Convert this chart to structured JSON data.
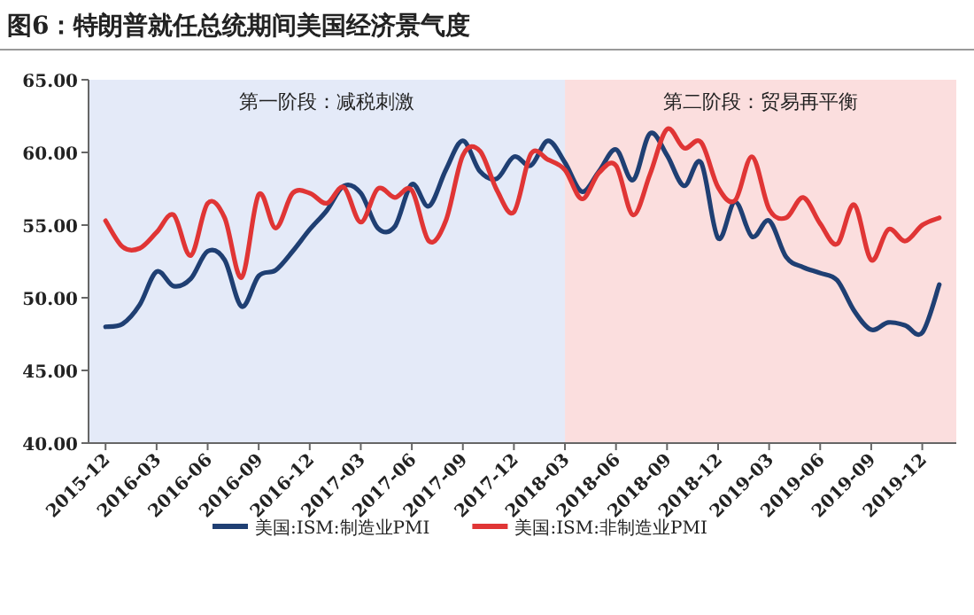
{
  "chart_data": {
    "type": "line",
    "title": "图6：特朗普就任总统期间美国经济景气度",
    "x": [
      "2015-12",
      "2016-01",
      "2016-02",
      "2016-03",
      "2016-04",
      "2016-05",
      "2016-06",
      "2016-07",
      "2016-08",
      "2016-09",
      "2016-10",
      "2016-11",
      "2016-12",
      "2017-01",
      "2017-02",
      "2017-03",
      "2017-04",
      "2017-05",
      "2017-06",
      "2017-07",
      "2017-08",
      "2017-09",
      "2017-10",
      "2017-11",
      "2017-12",
      "2018-01",
      "2018-02",
      "2018-03",
      "2018-04",
      "2018-05",
      "2018-06",
      "2018-07",
      "2018-08",
      "2018-09",
      "2018-10",
      "2018-11",
      "2018-12",
      "2019-01",
      "2019-02",
      "2019-03",
      "2019-04",
      "2019-05",
      "2019-06",
      "2019-07",
      "2019-08",
      "2019-09",
      "2019-10",
      "2019-11",
      "2019-12",
      "2020-01"
    ],
    "series": [
      {
        "name": "美国:ISM:制造业PMI",
        "color": "#1f3f73",
        "values": [
          48.0,
          48.2,
          49.5,
          51.8,
          50.8,
          51.3,
          53.2,
          52.6,
          49.4,
          51.5,
          51.9,
          53.2,
          54.7,
          56.0,
          57.7,
          57.2,
          54.8,
          54.9,
          57.8,
          56.3,
          58.8,
          60.8,
          58.7,
          58.2,
          59.7,
          59.1,
          60.8,
          59.3,
          57.3,
          58.7,
          60.2,
          58.1,
          61.3,
          59.8,
          57.7,
          59.3,
          54.1,
          56.6,
          54.2,
          55.3,
          52.8,
          52.1,
          51.7,
          51.2,
          49.1,
          47.8,
          48.3,
          48.1,
          47.6,
          50.9
        ]
      },
      {
        "name": "美国:ISM:非制造业PMI",
        "color": "#e03535",
        "values": [
          55.3,
          53.5,
          53.4,
          54.5,
          55.7,
          52.9,
          56.5,
          55.5,
          51.4,
          57.1,
          54.8,
          57.2,
          57.2,
          56.5,
          57.6,
          55.2,
          57.5,
          56.9,
          57.4,
          53.9,
          55.3,
          59.8,
          60.1,
          57.4,
          55.9,
          59.9,
          59.5,
          58.8,
          56.8,
          58.6,
          59.1,
          55.7,
          58.5,
          61.6,
          60.3,
          60.7,
          57.6,
          56.7,
          59.7,
          56.1,
          55.5,
          56.9,
          55.1,
          53.7,
          56.4,
          52.6,
          54.7,
          53.9,
          55.0,
          55.5
        ]
      }
    ],
    "xlim": [
      "2015-11",
      "2020-02"
    ],
    "xticks": [
      "2015-12",
      "2016-03",
      "2016-06",
      "2016-09",
      "2016-12",
      "2017-03",
      "2017-06",
      "2017-09",
      "2017-12",
      "2018-03",
      "2018-06",
      "2018-09",
      "2018-12",
      "2019-03",
      "2019-06",
      "2019-09",
      "2019-12"
    ],
    "ylim": [
      40,
      65
    ],
    "yticks": [
      {
        "value": 40,
        "label": "40.00"
      },
      {
        "value": 45,
        "label": "45.00"
      },
      {
        "value": 50,
        "label": "50.00"
      },
      {
        "value": 55,
        "label": "55.00"
      },
      {
        "value": 60,
        "label": "60.00"
      },
      {
        "value": 65,
        "label": "65.00"
      }
    ],
    "bands": [
      {
        "axis": "x",
        "from": "2015-11",
        "to": "2018-03",
        "label": "第一阶段：减税刺激",
        "color": "#e4eaf8"
      },
      {
        "axis": "x",
        "from": "2018-03",
        "to": "2020-02",
        "label": "第二阶段：贸易再平衡",
        "color": "#fbdede"
      }
    ],
    "grid": false,
    "legend": "bottom",
    "marker": "none",
    "line_style": "solid"
  }
}
